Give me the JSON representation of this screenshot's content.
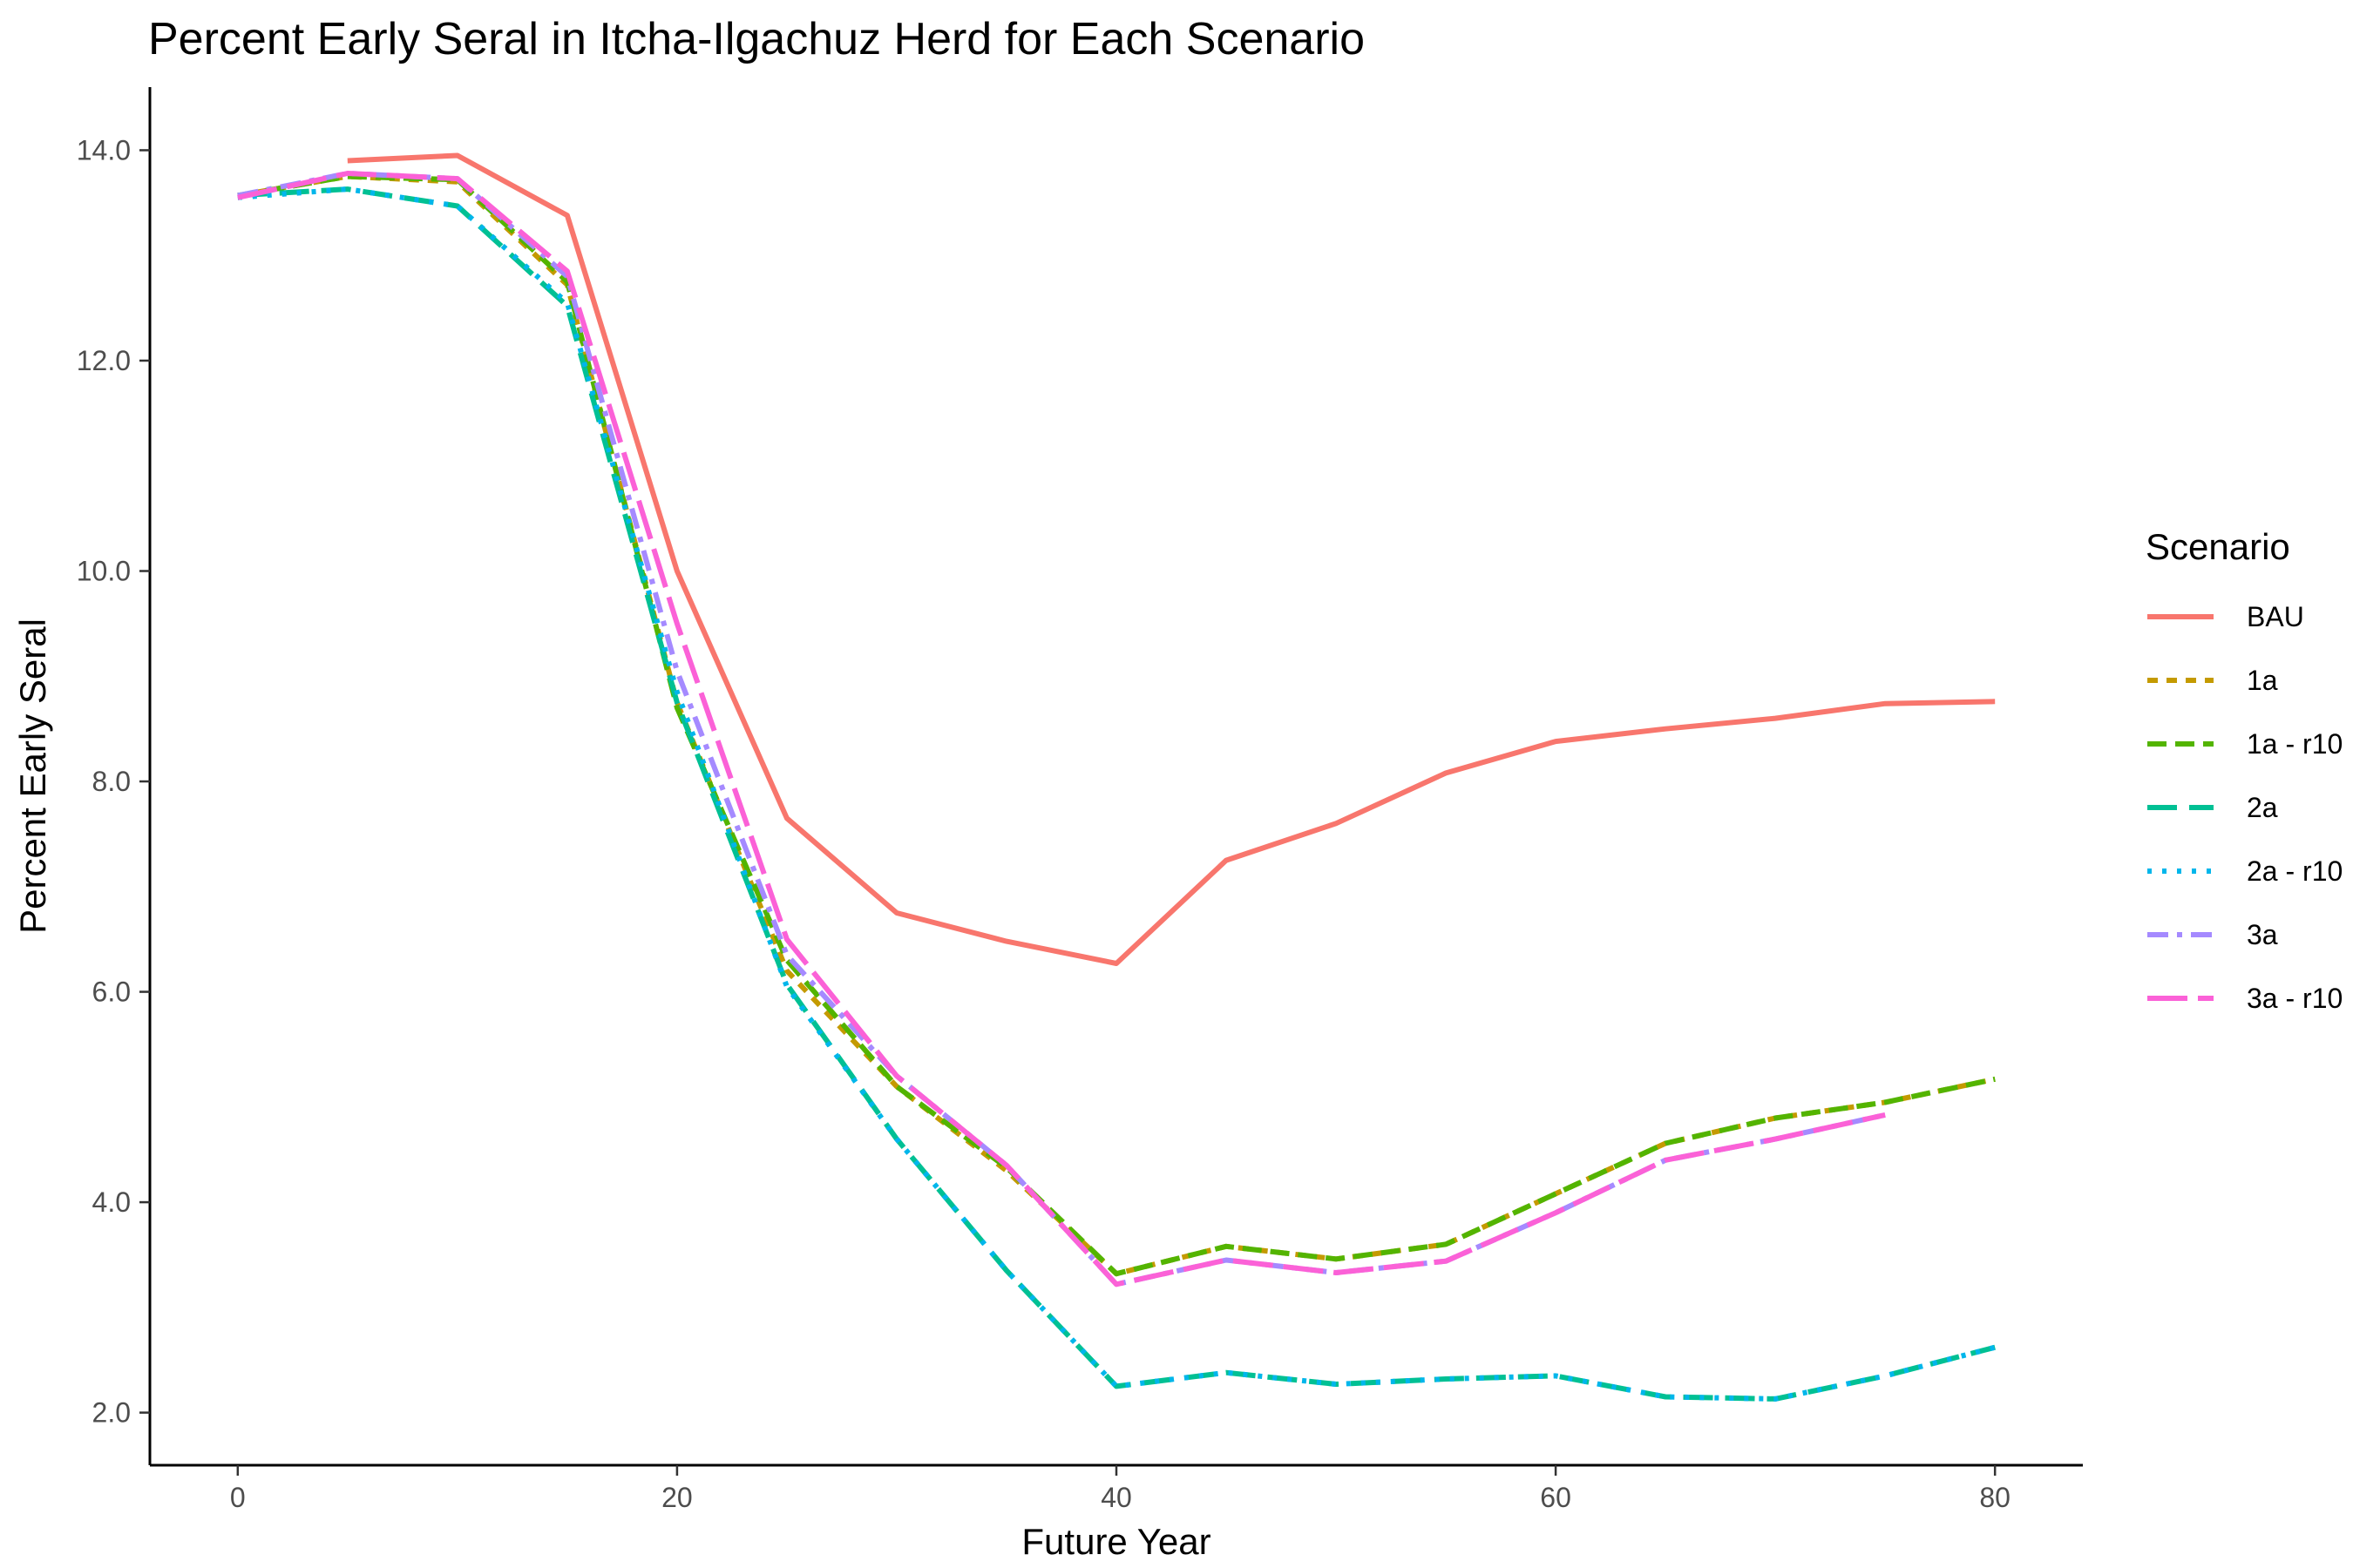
{
  "chart_data": {
    "type": "line",
    "title": "Percent Early Seral in Itcha-Ilgachuz Herd for Each Scenario",
    "xlabel": "Future Year",
    "ylabel": "Percent Early Seral",
    "xlim": [
      -4,
      84
    ],
    "ylim": [
      1.5,
      14.6
    ],
    "xticks": [
      0,
      20,
      40,
      60,
      80
    ],
    "yticks": [
      2.0,
      4.0,
      6.0,
      8.0,
      10.0,
      12.0,
      14.0
    ],
    "xtick_labels": [
      "0",
      "20",
      "40",
      "60",
      "80"
    ],
    "ytick_labels": [
      "2.0",
      "4.0",
      "6.0",
      "8.0",
      "10.0",
      "12.0",
      "14.0"
    ],
    "grid": false,
    "legend_title": "Scenario",
    "legend_position": "right",
    "series": [
      {
        "name": "BAU",
        "color": "#F8766D",
        "dash": "solid",
        "x": [
          5,
          10,
          15,
          20,
          25,
          30,
          35,
          40,
          45,
          50,
          55,
          60,
          65,
          70,
          75,
          80
        ],
        "y": [
          13.9,
          13.95,
          13.38,
          10.0,
          7.65,
          6.75,
          6.48,
          6.27,
          7.25,
          7.6,
          8.08,
          8.38,
          8.5,
          8.6,
          8.74,
          8.76
        ]
      },
      {
        "name": "1a",
        "color": "#C49A00",
        "dash": "dashed-short",
        "x": [
          0,
          5,
          10,
          15,
          20,
          25,
          30,
          35,
          40,
          45,
          50,
          55,
          60,
          65,
          70,
          75,
          80
        ],
        "y": [
          13.57,
          13.75,
          13.7,
          12.72,
          8.75,
          6.2,
          5.1,
          4.3,
          3.32,
          3.58,
          3.46,
          3.6,
          4.08,
          4.56,
          4.8,
          4.95,
          5.17
        ]
      },
      {
        "name": "1a - r10",
        "color": "#53B400",
        "dash": "dashed-medium",
        "x": [
          0,
          5,
          10,
          15,
          20,
          25,
          30,
          35,
          40,
          45,
          50,
          55,
          60,
          65,
          70,
          75,
          80
        ],
        "y": [
          13.57,
          13.75,
          13.72,
          12.75,
          8.7,
          6.3,
          5.1,
          4.33,
          3.32,
          3.58,
          3.46,
          3.6,
          4.08,
          4.56,
          4.8,
          4.95,
          5.17
        ]
      },
      {
        "name": "2a",
        "color": "#00C094",
        "dash": "dashed-long",
        "x": [
          0,
          5,
          10,
          15,
          20,
          25,
          30,
          35,
          40,
          45,
          50,
          55,
          60,
          65,
          70,
          75,
          80
        ],
        "y": [
          13.57,
          13.63,
          13.47,
          12.52,
          8.75,
          6.07,
          4.6,
          3.35,
          2.25,
          2.38,
          2.27,
          2.32,
          2.35,
          2.15,
          2.13,
          2.35,
          2.62
        ]
      },
      {
        "name": "2a - r10",
        "color": "#00B6EB",
        "dash": "dotted",
        "x": [
          0,
          5,
          10,
          15,
          20,
          25,
          30,
          35,
          40,
          45,
          50,
          55,
          60,
          65,
          70,
          75,
          80
        ],
        "y": [
          13.55,
          13.63,
          13.47,
          12.55,
          8.85,
          6.05,
          4.6,
          3.35,
          2.25,
          2.38,
          2.27,
          2.32,
          2.35,
          2.15,
          2.13,
          2.35,
          2.62
        ]
      },
      {
        "name": "3a",
        "color": "#A58AFF",
        "dash": "dash-dot",
        "x": [
          0,
          5,
          10,
          15,
          20,
          25,
          30,
          35,
          40,
          45,
          50,
          55,
          60,
          65,
          70,
          75
        ],
        "y": [
          13.57,
          13.78,
          13.73,
          12.8,
          9.05,
          6.35,
          5.2,
          4.35,
          3.22,
          3.45,
          3.33,
          3.44,
          3.9,
          4.4,
          4.6,
          4.83
        ]
      },
      {
        "name": "3a - r10",
        "color": "#FB61D7",
        "dash": "long-dash",
        "x": [
          0,
          5,
          10,
          15,
          20,
          25,
          30,
          35,
          40,
          45,
          50,
          55,
          60,
          65,
          70,
          75
        ],
        "y": [
          13.55,
          13.78,
          13.73,
          12.85,
          9.5,
          6.5,
          5.2,
          4.35,
          3.22,
          3.45,
          3.33,
          3.44,
          3.9,
          4.4,
          4.6,
          4.83
        ]
      }
    ]
  }
}
